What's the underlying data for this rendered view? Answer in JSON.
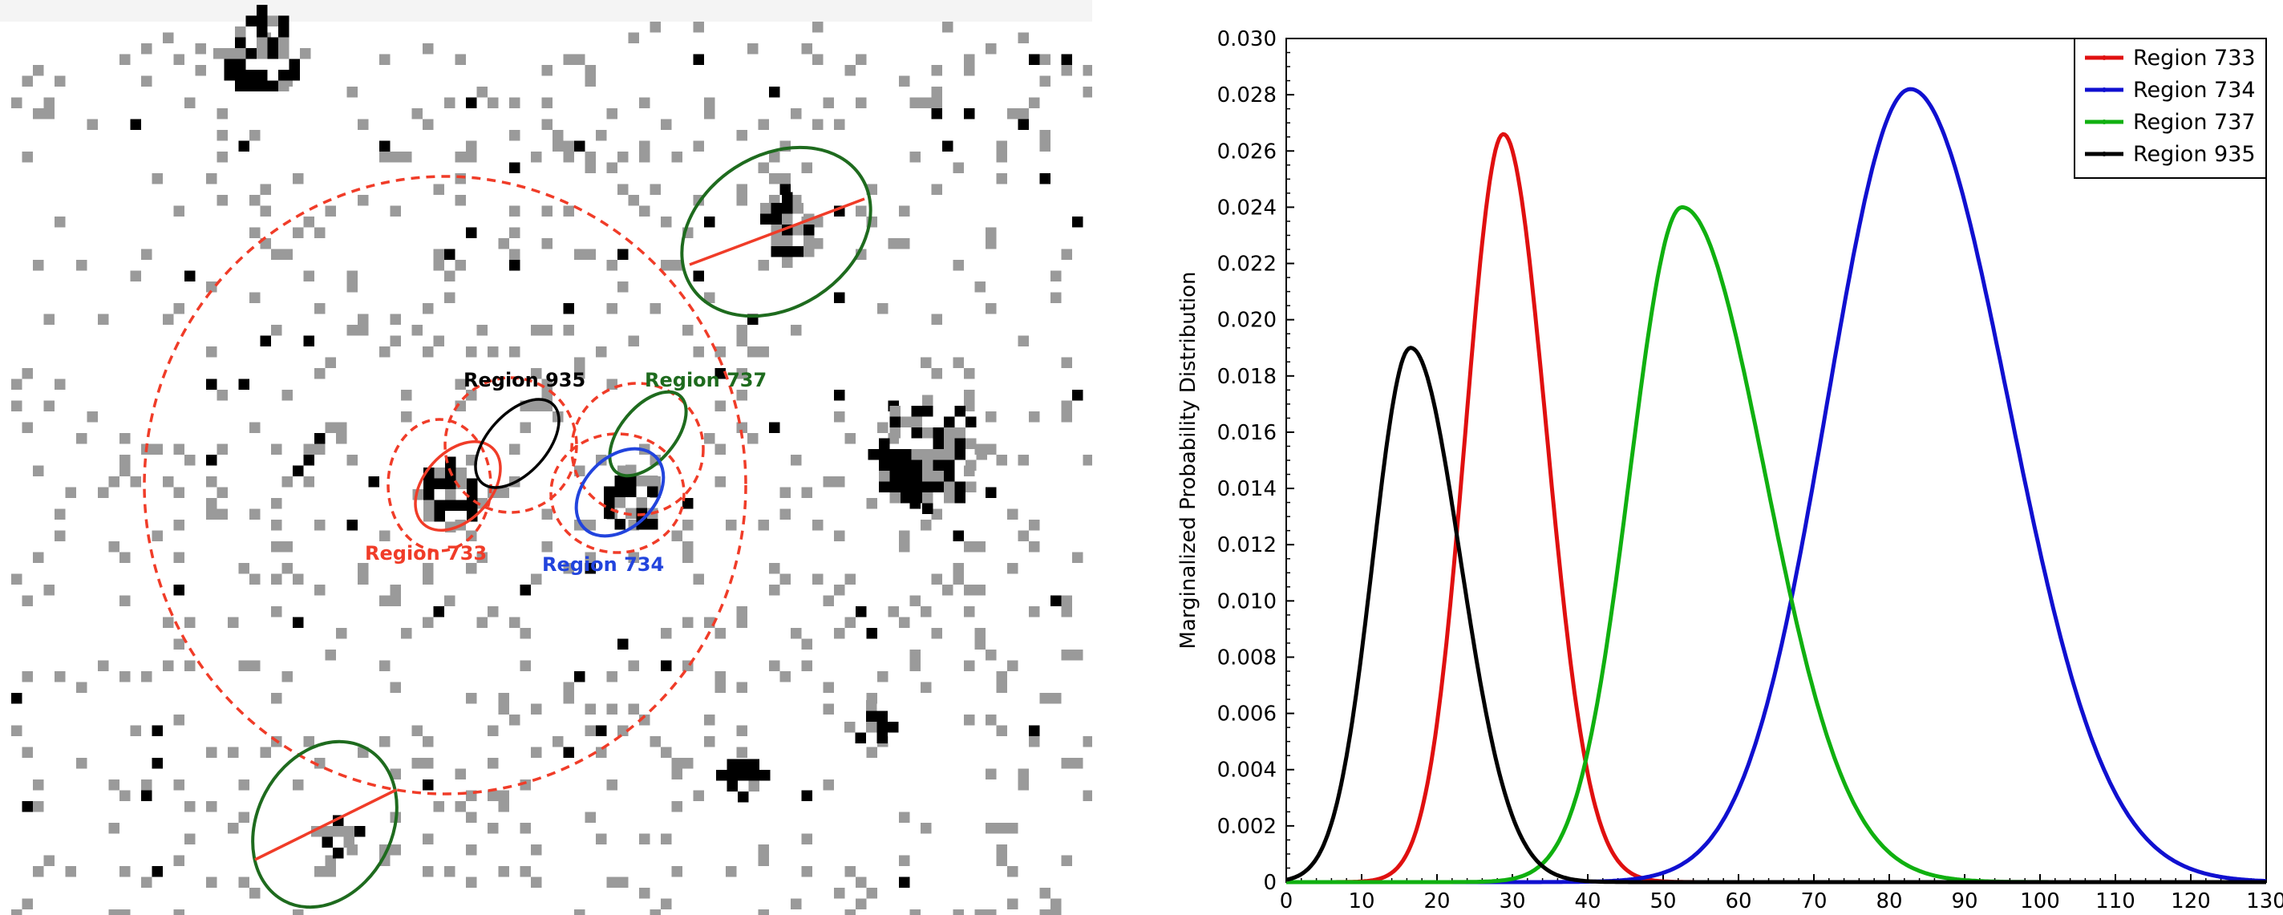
{
  "image_panel": {
    "labels": [
      {
        "text": "Region 935",
        "color": "#000000"
      },
      {
        "text": "Region 737",
        "color": "#1e6b1e"
      },
      {
        "text": "Region 733",
        "color": "#f03c28"
      },
      {
        "text": "Region 734",
        "color": "#2244dd"
      }
    ]
  },
  "chart_data": {
    "type": "line",
    "title": "",
    "xlabel": "",
    "ylabel": "Marginalized Probability Distribution",
    "xlim": [
      0,
      130
    ],
    "ylim": [
      0,
      0.03
    ],
    "xticks": [
      "0",
      "10",
      "20",
      "30",
      "40",
      "50",
      "60",
      "70",
      "80",
      "90",
      "100",
      "110",
      "120",
      "130"
    ],
    "yticks": [
      "0",
      "0.002",
      "0.004",
      "0.006",
      "0.008",
      "0.010",
      "0.012",
      "0.014",
      "0.016",
      "0.018",
      "0.020",
      "0.022",
      "0.024",
      "0.026",
      "0.028",
      "0.030"
    ],
    "legend_position": "top-right",
    "series": [
      {
        "name": "Region 733",
        "color": "#e01010",
        "peak_x": 28.8,
        "peak_y": 0.0266,
        "sigma_left": 5.0,
        "sigma_right": 5.7
      },
      {
        "name": "Region 734",
        "color": "#1010d0",
        "peak_x": 82.8,
        "peak_y": 0.0282,
        "sigma_left": 11.0,
        "sigma_right": 13.0
      },
      {
        "name": "Region 737",
        "color": "#10b010",
        "peak_x": 52.5,
        "peak_y": 0.024,
        "sigma_left": 6.9,
        "sigma_right": 11.0
      },
      {
        "name": "Region 935",
        "color": "#000000",
        "peak_x": 16.5,
        "peak_y": 0.019,
        "sigma_left": 5.0,
        "sigma_right": 6.6
      }
    ]
  }
}
